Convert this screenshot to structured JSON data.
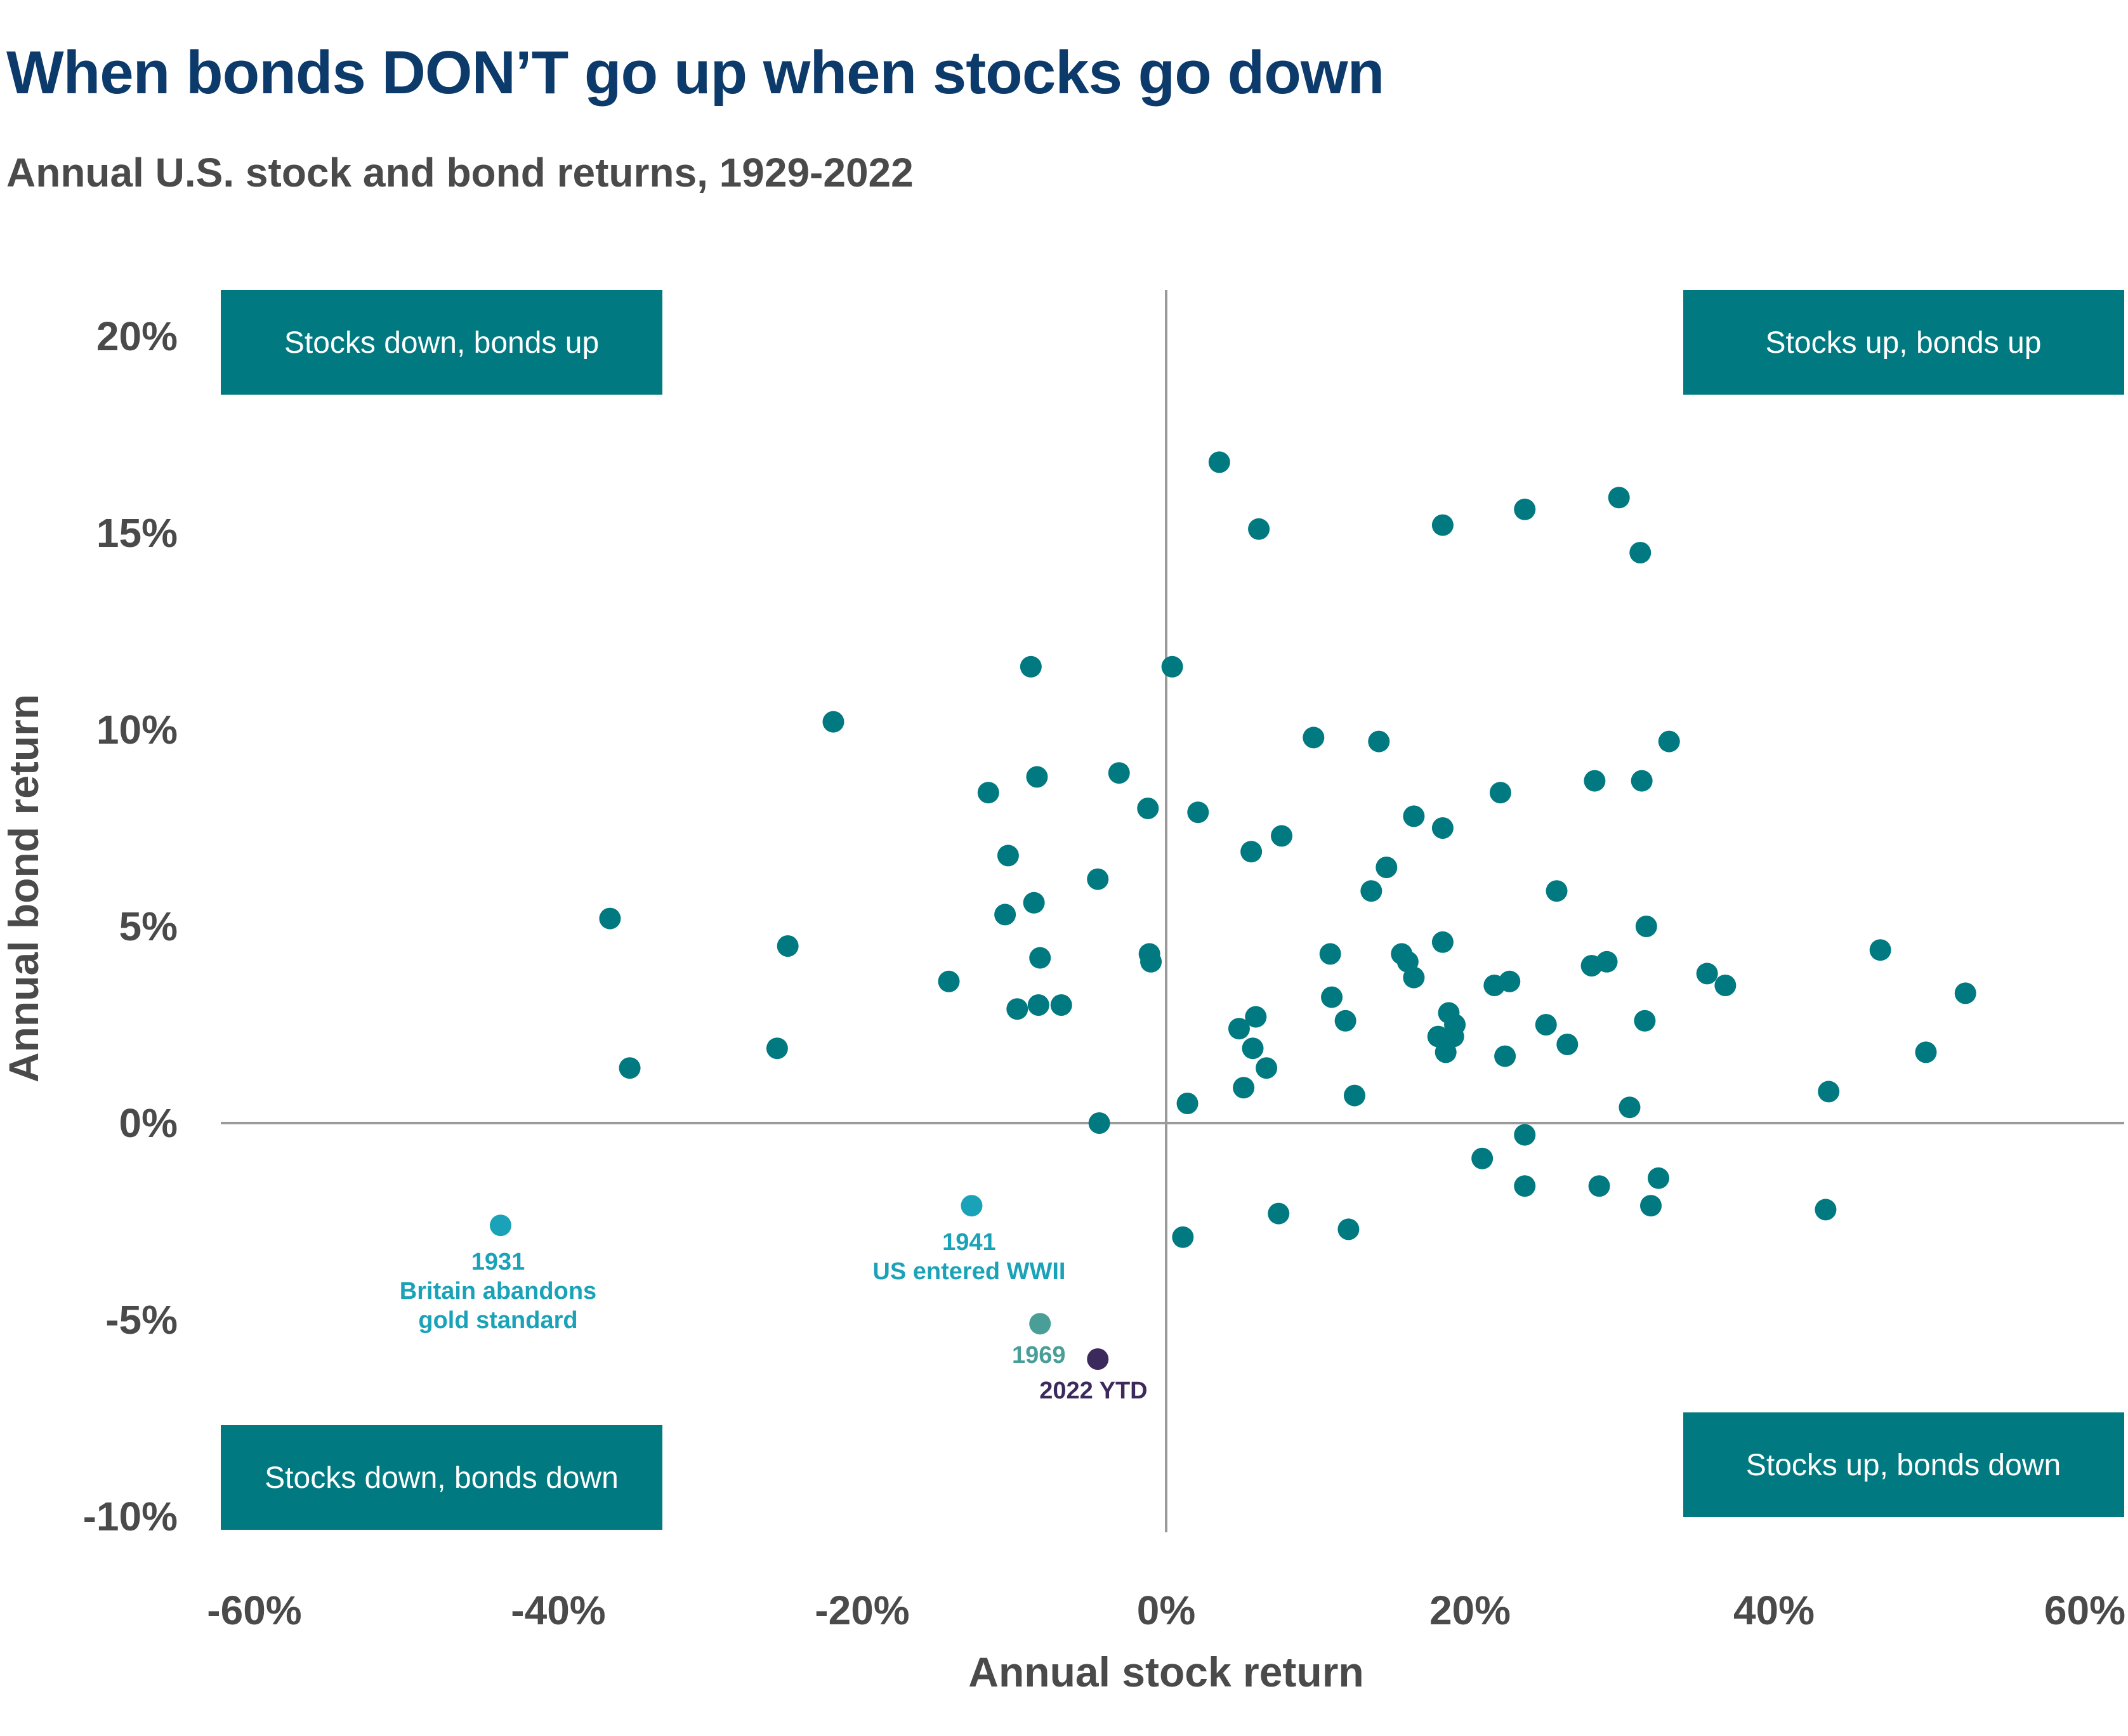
{
  "title": "When bonds DON’T go up when stocks go down",
  "subtitle": "Annual U.S. stock and bond returns, 1929-2022",
  "colors": {
    "title": "#0b3a6b",
    "text": "#4a4a4a",
    "point": "#007a80",
    "quadrant_box": "#007a80",
    "axis": "#9a9a9a",
    "highlight_1931": "#1aa3b8",
    "highlight_1941": "#1aa3b8",
    "highlight_1969": "#4a9e98",
    "highlight_2022": "#3d2a5c"
  },
  "quadrants": {
    "top_left": "Stocks down, bonds up",
    "top_right": "Stocks up, bonds up",
    "bottom_left": "Stocks down, bonds down",
    "bottom_right": "Stocks up, bonds down"
  },
  "chart_data": {
    "type": "scatter",
    "title": "When bonds DON’T go up when stocks go down",
    "subtitle": "Annual U.S. stock and bond returns, 1929-2022",
    "xlabel": "Annual stock return",
    "ylabel": "Annual bond return",
    "xlim": [
      -60,
      60
    ],
    "ylim": [
      -10,
      20
    ],
    "x_ticks": [
      -60,
      -40,
      -20,
      0,
      20,
      40,
      60
    ],
    "y_ticks": [
      20,
      15,
      10,
      5,
      0,
      -5,
      -10
    ],
    "x_tick_labels": [
      "-60%",
      "-40%",
      "-20%",
      "0%",
      "20%",
      "40%",
      "60%"
    ],
    "y_tick_labels": [
      "20%",
      "15%",
      "10%",
      "5%",
      "0%",
      "-5%",
      "-10%"
    ],
    "grid": false,
    "points": [
      {
        "x": 3.5,
        "y": 16.8
      },
      {
        "x": 6.1,
        "y": 15.1
      },
      {
        "x": 18.2,
        "y": 15.2
      },
      {
        "x": 23.6,
        "y": 15.6
      },
      {
        "x": 29.8,
        "y": 15.9
      },
      {
        "x": 31.2,
        "y": 14.5
      },
      {
        "x": -8.9,
        "y": 11.6
      },
      {
        "x": 0.4,
        "y": 11.6
      },
      {
        "x": -21.9,
        "y": 10.2
      },
      {
        "x": 9.7,
        "y": 9.8
      },
      {
        "x": 14.0,
        "y": 9.7
      },
      {
        "x": 33.1,
        "y": 9.7
      },
      {
        "x": -3.1,
        "y": 8.9
      },
      {
        "x": -8.5,
        "y": 8.8
      },
      {
        "x": 28.2,
        "y": 8.7
      },
      {
        "x": 31.3,
        "y": 8.7
      },
      {
        "x": -11.7,
        "y": 8.4
      },
      {
        "x": 22.0,
        "y": 8.4
      },
      {
        "x": -1.2,
        "y": 8.0
      },
      {
        "x": 2.1,
        "y": 7.9
      },
      {
        "x": 16.3,
        "y": 7.8
      },
      {
        "x": 18.2,
        "y": 7.5
      },
      {
        "x": 7.6,
        "y": 7.3
      },
      {
        "x": 5.6,
        "y": 6.9
      },
      {
        "x": -10.4,
        "y": 6.8
      },
      {
        "x": 14.5,
        "y": 6.5
      },
      {
        "x": -4.5,
        "y": 6.2
      },
      {
        "x": 13.5,
        "y": 5.9
      },
      {
        "x": 25.7,
        "y": 5.9
      },
      {
        "x": -8.7,
        "y": 5.6
      },
      {
        "x": -10.6,
        "y": 5.3
      },
      {
        "x": -36.6,
        "y": 5.2
      },
      {
        "x": 31.6,
        "y": 5.0
      },
      {
        "x": -24.9,
        "y": 4.5
      },
      {
        "x": 18.2,
        "y": 4.6
      },
      {
        "x": 47.0,
        "y": 4.4
      },
      {
        "x": -1.1,
        "y": 4.3
      },
      {
        "x": 10.8,
        "y": 4.3
      },
      {
        "x": 15.5,
        "y": 4.3
      },
      {
        "x": -8.3,
        "y": 4.2
      },
      {
        "x": 15.9,
        "y": 4.1
      },
      {
        "x": -1.0,
        "y": 4.1
      },
      {
        "x": 28.0,
        "y": 4.0
      },
      {
        "x": 29.0,
        "y": 4.1
      },
      {
        "x": 35.6,
        "y": 3.8
      },
      {
        "x": 16.3,
        "y": 3.7
      },
      {
        "x": -14.3,
        "y": 3.6
      },
      {
        "x": 21.6,
        "y": 3.5
      },
      {
        "x": 22.6,
        "y": 3.6
      },
      {
        "x": 36.8,
        "y": 3.5
      },
      {
        "x": 52.6,
        "y": 3.3
      },
      {
        "x": 10.9,
        "y": 3.2
      },
      {
        "x": -8.4,
        "y": 3.0
      },
      {
        "x": -6.9,
        "y": 3.0
      },
      {
        "x": -9.8,
        "y": 2.9
      },
      {
        "x": 5.9,
        "y": 2.7
      },
      {
        "x": 11.8,
        "y": 2.6
      },
      {
        "x": 18.6,
        "y": 2.8
      },
      {
        "x": 31.5,
        "y": 2.6
      },
      {
        "x": 19.0,
        "y": 2.5
      },
      {
        "x": 25.0,
        "y": 2.5
      },
      {
        "x": 4.8,
        "y": 2.4
      },
      {
        "x": 17.9,
        "y": 2.2
      },
      {
        "x": 18.9,
        "y": 2.2
      },
      {
        "x": -25.6,
        "y": 1.9
      },
      {
        "x": 5.7,
        "y": 1.9
      },
      {
        "x": 26.4,
        "y": 2.0
      },
      {
        "x": 18.4,
        "y": 1.8
      },
      {
        "x": 50.0,
        "y": 1.8
      },
      {
        "x": 22.3,
        "y": 1.7
      },
      {
        "x": -35.3,
        "y": 1.4
      },
      {
        "x": 6.6,
        "y": 1.4
      },
      {
        "x": 5.1,
        "y": 0.9
      },
      {
        "x": 12.4,
        "y": 0.7
      },
      {
        "x": 43.6,
        "y": 0.8
      },
      {
        "x": 1.4,
        "y": 0.5
      },
      {
        "x": 30.5,
        "y": 0.4
      },
      {
        "x": -4.4,
        "y": 0.0
      },
      {
        "x": 23.6,
        "y": -0.3
      },
      {
        "x": 20.8,
        "y": -0.9
      },
      {
        "x": 32.4,
        "y": -1.4
      },
      {
        "x": 23.6,
        "y": -1.6
      },
      {
        "x": 28.5,
        "y": -1.6
      },
      {
        "x": 31.9,
        "y": -2.1
      },
      {
        "x": 43.4,
        "y": -2.2
      },
      {
        "x": 7.4,
        "y": -2.3
      },
      {
        "x": 12.0,
        "y": -2.7
      },
      {
        "x": 1.1,
        "y": -2.9
      }
    ],
    "highlighted_points": [
      {
        "year": "1931",
        "label": "Britain abandons gold standard",
        "label_lines": [
          "1931",
          "Britain abandons",
          "gold standard"
        ],
        "x": -43.8,
        "y": -2.6
      },
      {
        "year": "1941",
        "label": "US entered WWII",
        "label_lines": [
          "1941",
          "US entered WWII"
        ],
        "x": -12.8,
        "y": -2.1
      },
      {
        "year": "1969",
        "label": "",
        "label_lines": [
          "1969"
        ],
        "x": -8.3,
        "y": -5.1
      },
      {
        "year": "2022 YTD",
        "label": "",
        "label_lines": [
          "2022 YTD"
        ],
        "x": -4.5,
        "y": -6.0
      }
    ]
  }
}
